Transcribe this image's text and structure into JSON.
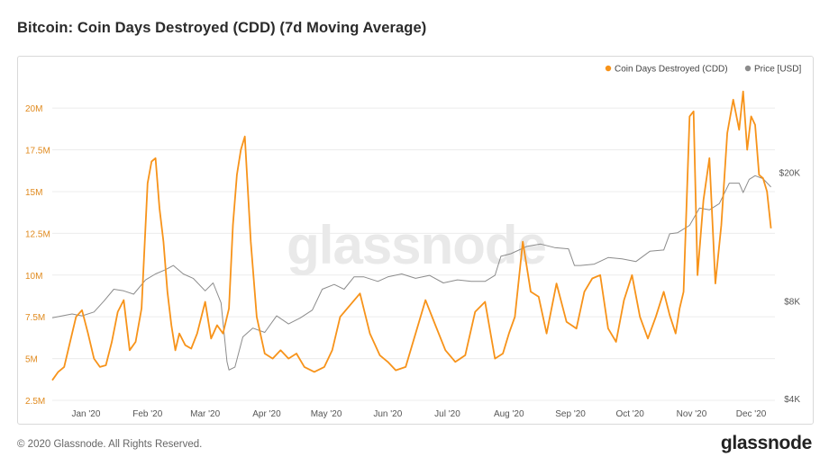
{
  "title": "Bitcoin: Coin Days Destroyed (CDD) (7d Moving Average)",
  "footer": {
    "copyright": "© 2020 Glassnode. All Rights Reserved.",
    "brand": "glassnode"
  },
  "watermark": "glassnode",
  "colors": {
    "cdd": "#f7931a",
    "price": "#8c8c8c",
    "grid": "#ececec",
    "left_axis": "#e08a1e",
    "right_axis": "#555555"
  },
  "chart_data": {
    "type": "line",
    "title": "Bitcoin: Coin Days Destroyed (CDD) (7d Moving Average)",
    "legend_placement": "top-right",
    "grid": true,
    "x_range": [
      "2019-12-15",
      "2020-12-13"
    ],
    "x_ticks": [
      {
        "date": "2020-01-01",
        "label": "Jan '20"
      },
      {
        "date": "2020-02-01",
        "label": "Feb '20"
      },
      {
        "date": "2020-03-01",
        "label": "Mar '20"
      },
      {
        "date": "2020-04-01",
        "label": "Apr '20"
      },
      {
        "date": "2020-05-01",
        "label": "May '20"
      },
      {
        "date": "2020-06-01",
        "label": "Jun '20"
      },
      {
        "date": "2020-07-01",
        "label": "Jul '20"
      },
      {
        "date": "2020-08-01",
        "label": "Aug '20"
      },
      {
        "date": "2020-09-01",
        "label": "Sep '20"
      },
      {
        "date": "2020-10-01",
        "label": "Oct '20"
      },
      {
        "date": "2020-11-01",
        "label": "Nov '20"
      },
      {
        "date": "2020-12-01",
        "label": "Dec '20"
      }
    ],
    "y_left": {
      "ylim": [
        2500000,
        22000000
      ],
      "ticks": [
        {
          "value": 2500000,
          "label": "2.5M"
        },
        {
          "value": 5000000,
          "label": "5M"
        },
        {
          "value": 7500000,
          "label": "7.5M"
        },
        {
          "value": 10000000,
          "label": "10M"
        },
        {
          "value": 12500000,
          "label": "12.5M"
        },
        {
          "value": 15000000,
          "label": "15M"
        },
        {
          "value": 17500000,
          "label": "17.5M"
        },
        {
          "value": 20000000,
          "label": "20M"
        }
      ]
    },
    "y_right": {
      "scale": "log",
      "ylim": [
        3950,
        40000
      ],
      "ticks": [
        {
          "value": 4000,
          "label": "$4K"
        },
        {
          "value": 8000,
          "label": "$8K"
        },
        {
          "value": 20000,
          "label": "$20K"
        }
      ]
    },
    "series": [
      {
        "name": "Coin Days Destroyed (CDD)",
        "axis": "left",
        "x": [
          "2019-12-15",
          "2019-12-18",
          "2019-12-21",
          "2019-12-24",
          "2019-12-27",
          "2019-12-30",
          "2020-01-02",
          "2020-01-05",
          "2020-01-08",
          "2020-01-11",
          "2020-01-14",
          "2020-01-17",
          "2020-01-20",
          "2020-01-23",
          "2020-01-26",
          "2020-01-29",
          "2020-02-01",
          "2020-02-03",
          "2020-02-05",
          "2020-02-07",
          "2020-02-09",
          "2020-02-11",
          "2020-02-13",
          "2020-02-15",
          "2020-02-17",
          "2020-02-20",
          "2020-02-23",
          "2020-02-26",
          "2020-03-01",
          "2020-03-04",
          "2020-03-07",
          "2020-03-10",
          "2020-03-13",
          "2020-03-15",
          "2020-03-17",
          "2020-03-19",
          "2020-03-21",
          "2020-03-24",
          "2020-03-27",
          "2020-03-31",
          "2020-04-04",
          "2020-04-08",
          "2020-04-12",
          "2020-04-16",
          "2020-04-20",
          "2020-04-25",
          "2020-04-30",
          "2020-05-04",
          "2020-05-08",
          "2020-05-13",
          "2020-05-18",
          "2020-05-23",
          "2020-05-28",
          "2020-06-01",
          "2020-06-05",
          "2020-06-10",
          "2020-06-15",
          "2020-06-20",
          "2020-06-25",
          "2020-06-30",
          "2020-07-05",
          "2020-07-10",
          "2020-07-15",
          "2020-07-20",
          "2020-07-25",
          "2020-07-29",
          "2020-08-01",
          "2020-08-04",
          "2020-08-08",
          "2020-08-12",
          "2020-08-16",
          "2020-08-20",
          "2020-08-25",
          "2020-08-30",
          "2020-09-04",
          "2020-09-08",
          "2020-09-12",
          "2020-09-16",
          "2020-09-20",
          "2020-09-24",
          "2020-09-28",
          "2020-10-02",
          "2020-10-06",
          "2020-10-10",
          "2020-10-14",
          "2020-10-18",
          "2020-10-21",
          "2020-10-24",
          "2020-10-26",
          "2020-10-28",
          "2020-10-31",
          "2020-11-02",
          "2020-11-04",
          "2020-11-07",
          "2020-11-10",
          "2020-11-13",
          "2020-11-16",
          "2020-11-19",
          "2020-11-22",
          "2020-11-25",
          "2020-11-27",
          "2020-11-29",
          "2020-12-01",
          "2020-12-03",
          "2020-12-05",
          "2020-12-07",
          "2020-12-09",
          "2020-12-11"
        ],
        "values": [
          3.7,
          4.2,
          4.5,
          6.0,
          7.5,
          7.9,
          6.5,
          5.0,
          4.5,
          4.6,
          6.0,
          7.8,
          8.5,
          5.5,
          6.0,
          8.0,
          15.5,
          16.8,
          17.0,
          14.0,
          12.0,
          9.0,
          7.0,
          5.5,
          6.5,
          5.8,
          5.6,
          6.5,
          8.4,
          6.2,
          7.0,
          6.5,
          8.0,
          13.0,
          16.0,
          17.5,
          18.3,
          12.0,
          7.5,
          5.3,
          5.0,
          5.5,
          5.0,
          5.3,
          4.5,
          4.2,
          4.5,
          5.5,
          7.5,
          8.2,
          8.9,
          6.5,
          5.2,
          4.8,
          4.3,
          4.5,
          6.5,
          8.5,
          7.0,
          5.5,
          4.8,
          5.2,
          7.8,
          8.4,
          5.0,
          5.3,
          6.5,
          7.5,
          12.0,
          9.0,
          8.7,
          6.5,
          9.5,
          7.2,
          6.8,
          9.0,
          9.8,
          10.0,
          6.8,
          6.0,
          8.5,
          10.0,
          7.5,
          6.2,
          7.5,
          9.0,
          7.6,
          6.5,
          8.0,
          9.0,
          19.5,
          19.8,
          10.0,
          14.5,
          17.0,
          9.5,
          13.0,
          18.5,
          20.5,
          18.7,
          21.0,
          17.5,
          19.5,
          19.0,
          16.0,
          15.8,
          15.0,
          12.8
        ]
      },
      {
        "name": "Price [USD]",
        "axis": "right",
        "x": [
          "2019-12-15",
          "2019-12-20",
          "2019-12-25",
          "2019-12-30",
          "2020-01-05",
          "2020-01-10",
          "2020-01-15",
          "2020-01-20",
          "2020-01-25",
          "2020-01-31",
          "2020-02-05",
          "2020-02-10",
          "2020-02-14",
          "2020-02-19",
          "2020-02-24",
          "2020-03-01",
          "2020-03-05",
          "2020-03-09",
          "2020-03-12",
          "2020-03-13",
          "2020-03-16",
          "2020-03-20",
          "2020-03-25",
          "2020-03-31",
          "2020-04-06",
          "2020-04-12",
          "2020-04-18",
          "2020-04-24",
          "2020-04-29",
          "2020-05-05",
          "2020-05-10",
          "2020-05-15",
          "2020-05-20",
          "2020-05-27",
          "2020-06-01",
          "2020-06-08",
          "2020-06-15",
          "2020-06-22",
          "2020-06-29",
          "2020-07-06",
          "2020-07-13",
          "2020-07-20",
          "2020-07-25",
          "2020-07-28",
          "2020-08-02",
          "2020-08-10",
          "2020-08-17",
          "2020-08-24",
          "2020-08-31",
          "2020-09-03",
          "2020-09-06",
          "2020-09-13",
          "2020-09-20",
          "2020-09-27",
          "2020-10-04",
          "2020-10-11",
          "2020-10-18",
          "2020-10-21",
          "2020-10-25",
          "2020-10-31",
          "2020-11-05",
          "2020-11-10",
          "2020-11-15",
          "2020-11-20",
          "2020-11-25",
          "2020-11-27",
          "2020-11-30",
          "2020-12-03",
          "2020-12-07",
          "2020-12-11"
        ],
        "values": [
          7100,
          7200,
          7300,
          7200,
          7400,
          8000,
          8700,
          8600,
          8400,
          9300,
          9700,
          10000,
          10300,
          9700,
          9400,
          8600,
          9100,
          7900,
          5200,
          4900,
          5000,
          6200,
          6600,
          6400,
          7200,
          6800,
          7100,
          7500,
          8700,
          9000,
          8700,
          9500,
          9500,
          9200,
          9500,
          9700,
          9400,
          9600,
          9100,
          9300,
          9200,
          9200,
          9600,
          11000,
          11200,
          11800,
          12000,
          11700,
          11600,
          10300,
          10300,
          10400,
          10900,
          10800,
          10600,
          11400,
          11500,
          12900,
          13000,
          13700,
          15500,
          15300,
          16000,
          18500,
          18500,
          17300,
          19000,
          19500,
          19100,
          18000
        ]
      }
    ]
  }
}
